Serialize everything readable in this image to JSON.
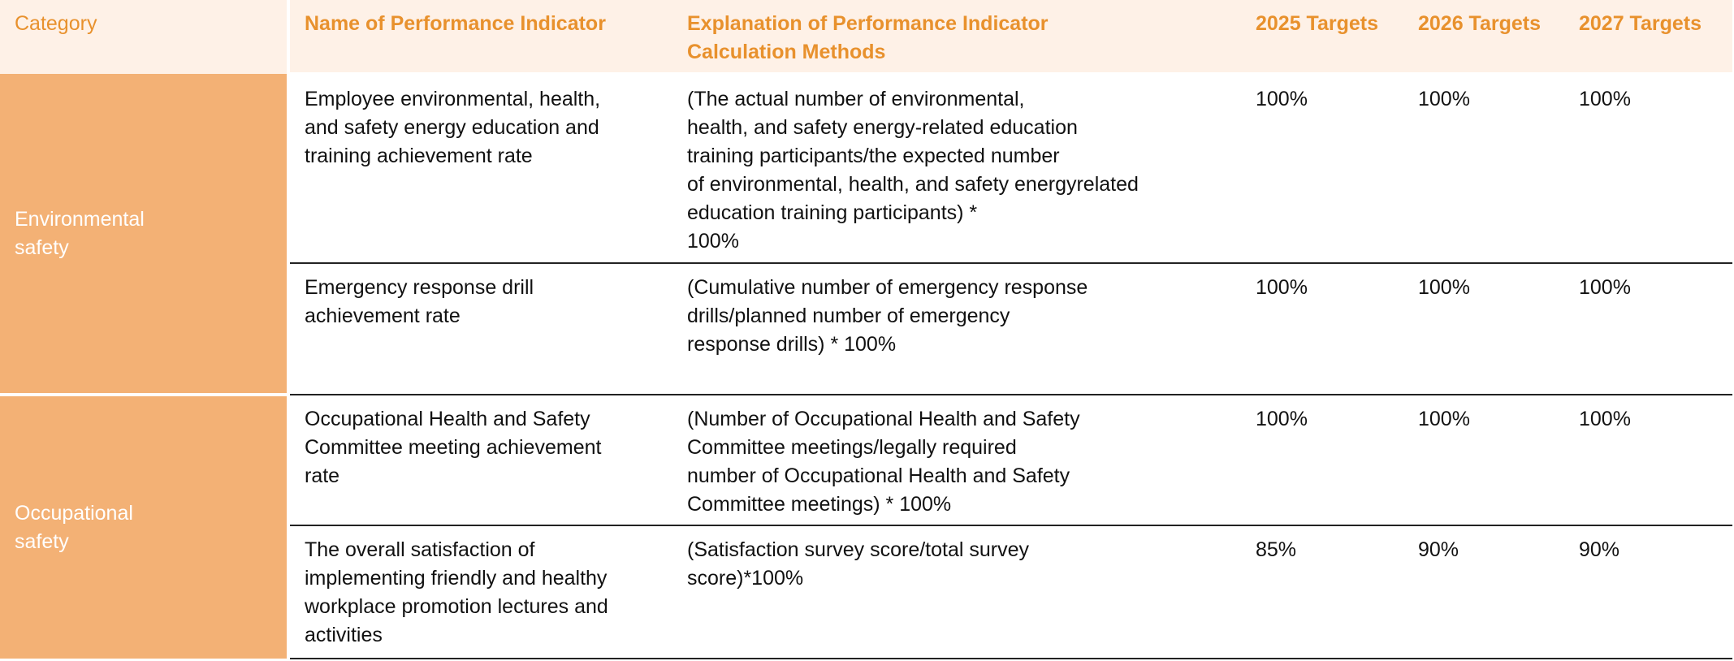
{
  "headers": {
    "category": "Category",
    "indicator": "Name of Performance Indicator",
    "explanation_line1": "Explanation of Performance Indicator",
    "explanation_line2": "Calculation Methods",
    "target_2025": "2025 Targets",
    "target_2026": "2026 Targets",
    "target_2027": "2027 Targets"
  },
  "categories": [
    {
      "line1": "Environmental",
      "line2": "safety"
    },
    {
      "line1": "Occupational",
      "line2": "safety"
    }
  ],
  "rows": [
    {
      "indicator_lines": [
        "Employee environmental, health,",
        "and safety energy education and",
        "training achievement rate"
      ],
      "explanation_lines": [
        "(The actual number of environmental,",
        "health, and safety energy-related education",
        "training participants/the expected number",
        "of environmental, health, and safety energyrelated",
        "education training participants) *",
        "100%"
      ],
      "t2025": "100%",
      "t2026": "100%",
      "t2027": "100%"
    },
    {
      "indicator_lines": [
        "Emergency response drill",
        "achievement rate"
      ],
      "explanation_lines": [
        "(Cumulative number of emergency response",
        "drills/planned number of emergency",
        "response drills) * 100%"
      ],
      "t2025": "100%",
      "t2026": "100%",
      "t2027": "100%"
    },
    {
      "indicator_lines": [
        "Occupational Health and Safety",
        "Committee meeting achievement",
        "rate"
      ],
      "explanation_lines": [
        "(Number of Occupational Health and Safety",
        "Committee meetings/legally required",
        "number of Occupational Health and Safety",
        "Committee meetings) * 100%"
      ],
      "t2025": "100%",
      "t2026": "100%",
      "t2027": "100%"
    },
    {
      "indicator_lines": [
        "The overall satisfaction of",
        "implementing friendly and healthy",
        "workplace promotion lectures and",
        "activities"
      ],
      "explanation_lines": [
        "(Satisfaction survey score/total survey",
        "score)*100%"
      ],
      "t2025": "85%",
      "t2026": "90%",
      "t2027": "90%"
    }
  ],
  "colors": {
    "header_bg": "#fef1e7",
    "header_text": "#e8912d",
    "category_bg": "#f3b175",
    "category_text": "#ffffff",
    "body_text": "#111111",
    "divider": "#222222"
  }
}
